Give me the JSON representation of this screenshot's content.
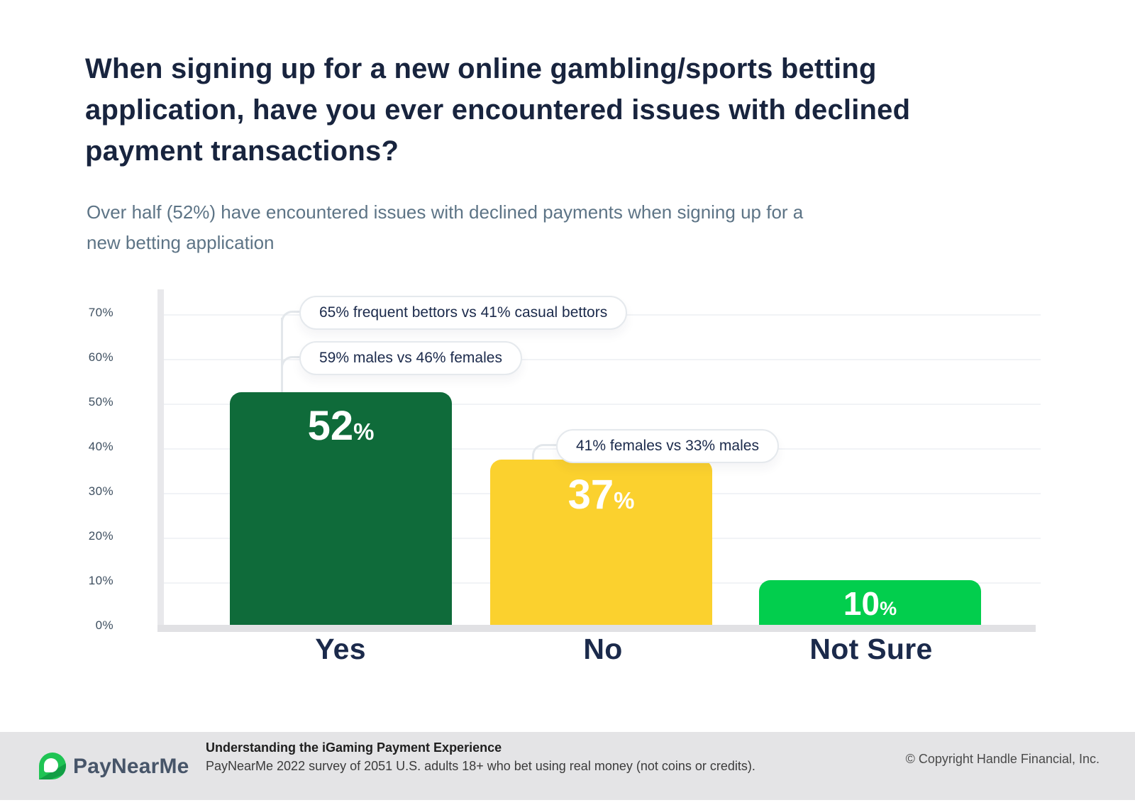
{
  "title": "When signing up for a new online gambling/sports betting\napplication, have you ever encountered issues with declined\npayment transactions?",
  "subtitle": "Over half (52%) have encountered issues with declined payments when signing up for a\nnew betting application",
  "chart_data": {
    "type": "bar",
    "categories": [
      "Yes",
      "No",
      "Not Sure"
    ],
    "values": [
      52,
      37,
      10
    ],
    "value_labels": [
      "52",
      "37",
      "10"
    ],
    "percent_sign": "%",
    "y_ticks": [
      "70%",
      "60%",
      "50%",
      "40%",
      "30%",
      "20%",
      "10%",
      "0%"
    ],
    "ylim": [
      0,
      70
    ],
    "grid": true,
    "legend": false,
    "bar_colors": {
      "yes": "#0F6B3A",
      "no": "#FBD12E",
      "not_sure": "#02CE4D"
    },
    "annotations": [
      {
        "text": "65% frequent bettors vs 41% casual bettors",
        "target": "Yes"
      },
      {
        "text": "59% males vs 46% females",
        "target": "Yes"
      },
      {
        "text": "41% females vs 33% males",
        "target": "No"
      }
    ]
  },
  "footer": {
    "brand": "PayNearMe",
    "logo_icon": "paynearme-speech-bubble-icon",
    "report_title": "Understanding the iGaming Payment Experience",
    "report_subtitle": "PayNearMe 2022 survey of 2051 U.S. adults 18+ who bet using real money (not coins or credits).",
    "copyright": "© Copyright Handle Financial, Inc."
  },
  "colors": {
    "title_navy": "#18243E",
    "subtitle_slate": "#5D7486",
    "footer_bg": "#E4E4E6",
    "grid": "#F1F3F6",
    "axis": "#E1E1E4"
  }
}
